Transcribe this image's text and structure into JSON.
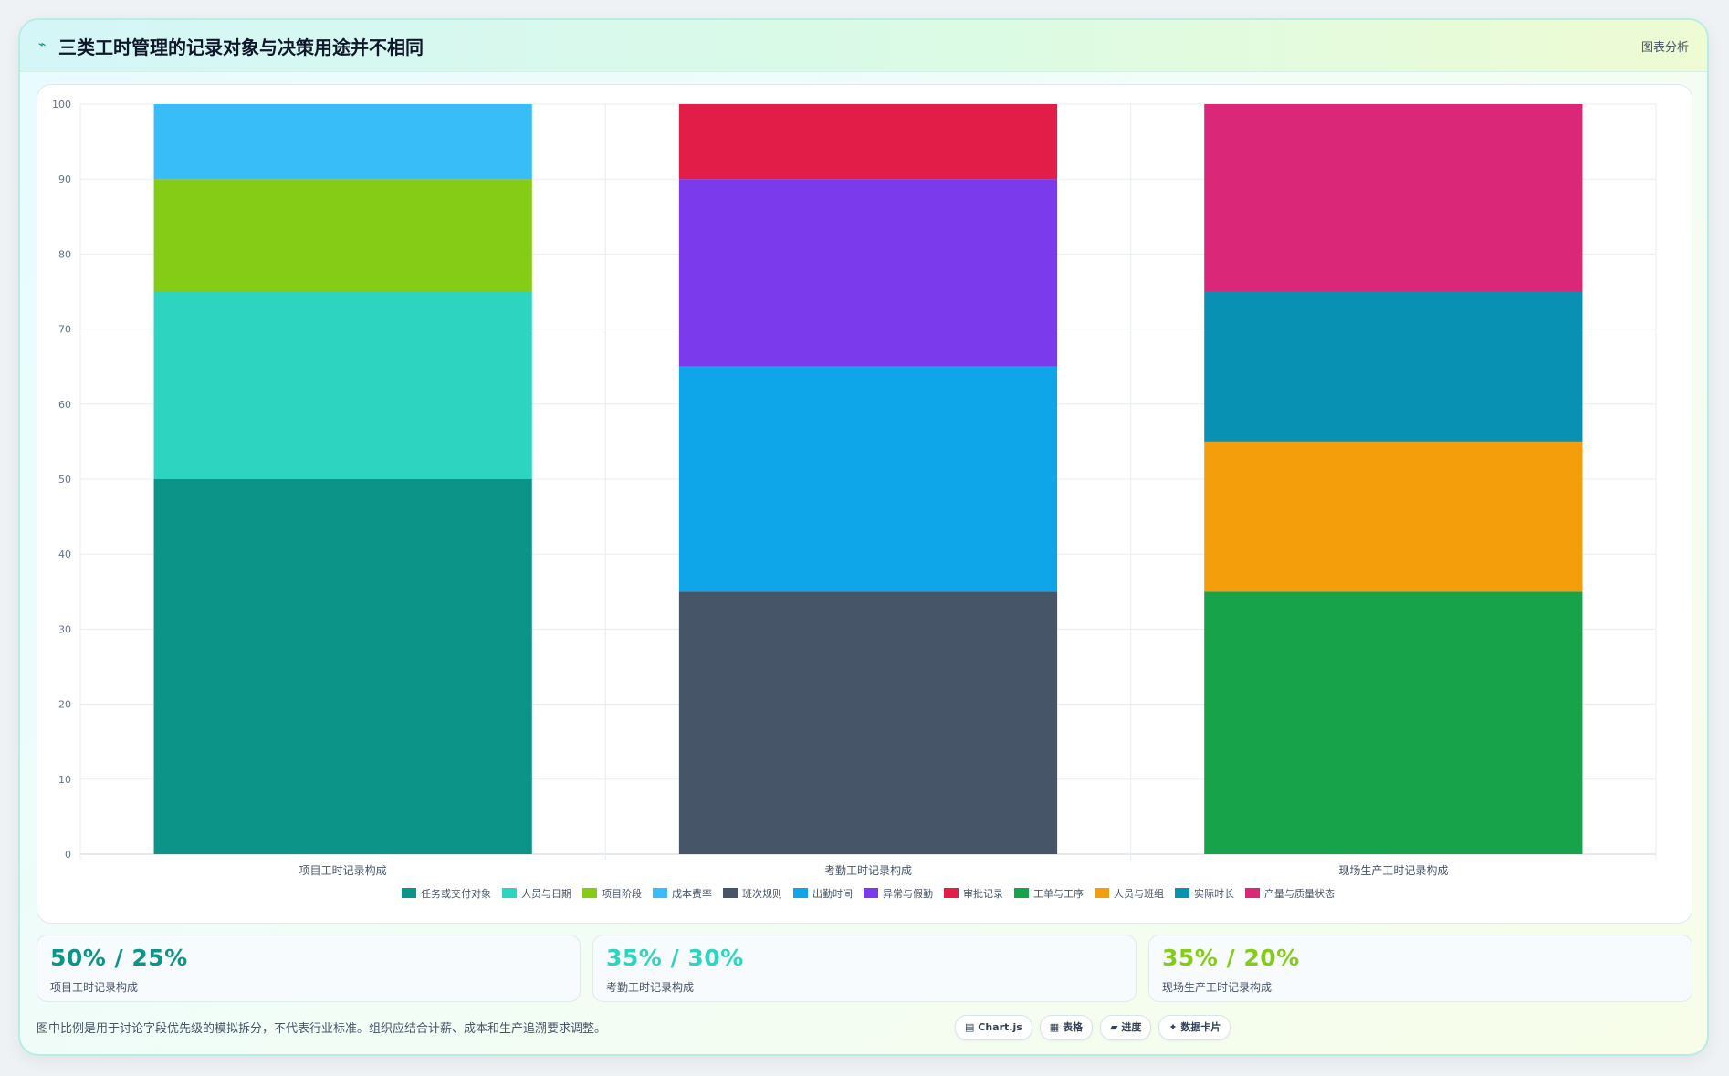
{
  "header": {
    "icon": "trend-line-icon",
    "icon_glyph": "⌁",
    "title": "三类工时管理的记录对象与决策用途并不相同",
    "tag": "图表分析"
  },
  "chart_data": {
    "type": "bar",
    "stacked": true,
    "title": "",
    "xlabel": "",
    "ylabel": "",
    "ylim": [
      0,
      100
    ],
    "y_ticks": [
      0,
      10,
      20,
      30,
      40,
      50,
      60,
      70,
      80,
      90,
      100
    ],
    "grid": true,
    "legend_position": "bottom",
    "categories": [
      "项目工时记录构成",
      "考勤工时记录构成",
      "现场生产工时记录构成"
    ],
    "series": [
      {
        "name": "任务或交付对象",
        "color": "#0d9488",
        "values": [
          50,
          0,
          0
        ]
      },
      {
        "name": "人员与日期",
        "color": "#2dd4bf",
        "values": [
          25,
          0,
          0
        ]
      },
      {
        "name": "项目阶段",
        "color": "#84cc16",
        "values": [
          15,
          0,
          0
        ]
      },
      {
        "name": "成本费率",
        "color": "#38bdf8",
        "values": [
          10,
          0,
          0
        ]
      },
      {
        "name": "班次规则",
        "color": "#475569",
        "values": [
          0,
          35,
          0
        ]
      },
      {
        "name": "出勤时间",
        "color": "#0ea5e9",
        "values": [
          0,
          30,
          0
        ]
      },
      {
        "name": "异常与假勤",
        "color": "#7c3aed",
        "values": [
          0,
          25,
          0
        ]
      },
      {
        "name": "审批记录",
        "color": "#e11d48",
        "values": [
          0,
          10,
          0
        ]
      },
      {
        "name": "工单与工序",
        "color": "#16a34a",
        "values": [
          0,
          0,
          35
        ]
      },
      {
        "name": "人员与班组",
        "color": "#f59e0b",
        "values": [
          0,
          0,
          20
        ]
      },
      {
        "name": "实际时长",
        "color": "#0891b2",
        "values": [
          0,
          0,
          20
        ]
      },
      {
        "name": "产量与质量状态",
        "color": "#db2777",
        "values": [
          0,
          0,
          25
        ]
      }
    ]
  },
  "stats": [
    {
      "value": "50% / 25%",
      "label": "项目工时记录构成",
      "color": "#0d9488"
    },
    {
      "value": "35% / 30%",
      "label": "考勤工时记录构成",
      "color": "#2dd4bf"
    },
    {
      "value": "35% / 20%",
      "label": "现场生产工时记录构成",
      "color": "#84cc16"
    }
  ],
  "footer": {
    "note": "图中比例是用于讨论字段优先级的模拟拆分，不代表行业标准。组织应结合计薪、成本和生产追溯要求调整。",
    "pills": [
      {
        "icon": "chart-icon",
        "glyph": "▤",
        "label": "Chart.js"
      },
      {
        "icon": "table-icon",
        "glyph": "▦",
        "label": "表格"
      },
      {
        "icon": "progress-icon",
        "glyph": "▰",
        "label": "进度"
      },
      {
        "icon": "data-card-icon",
        "glyph": "✦",
        "label": "数据卡片"
      }
    ]
  }
}
